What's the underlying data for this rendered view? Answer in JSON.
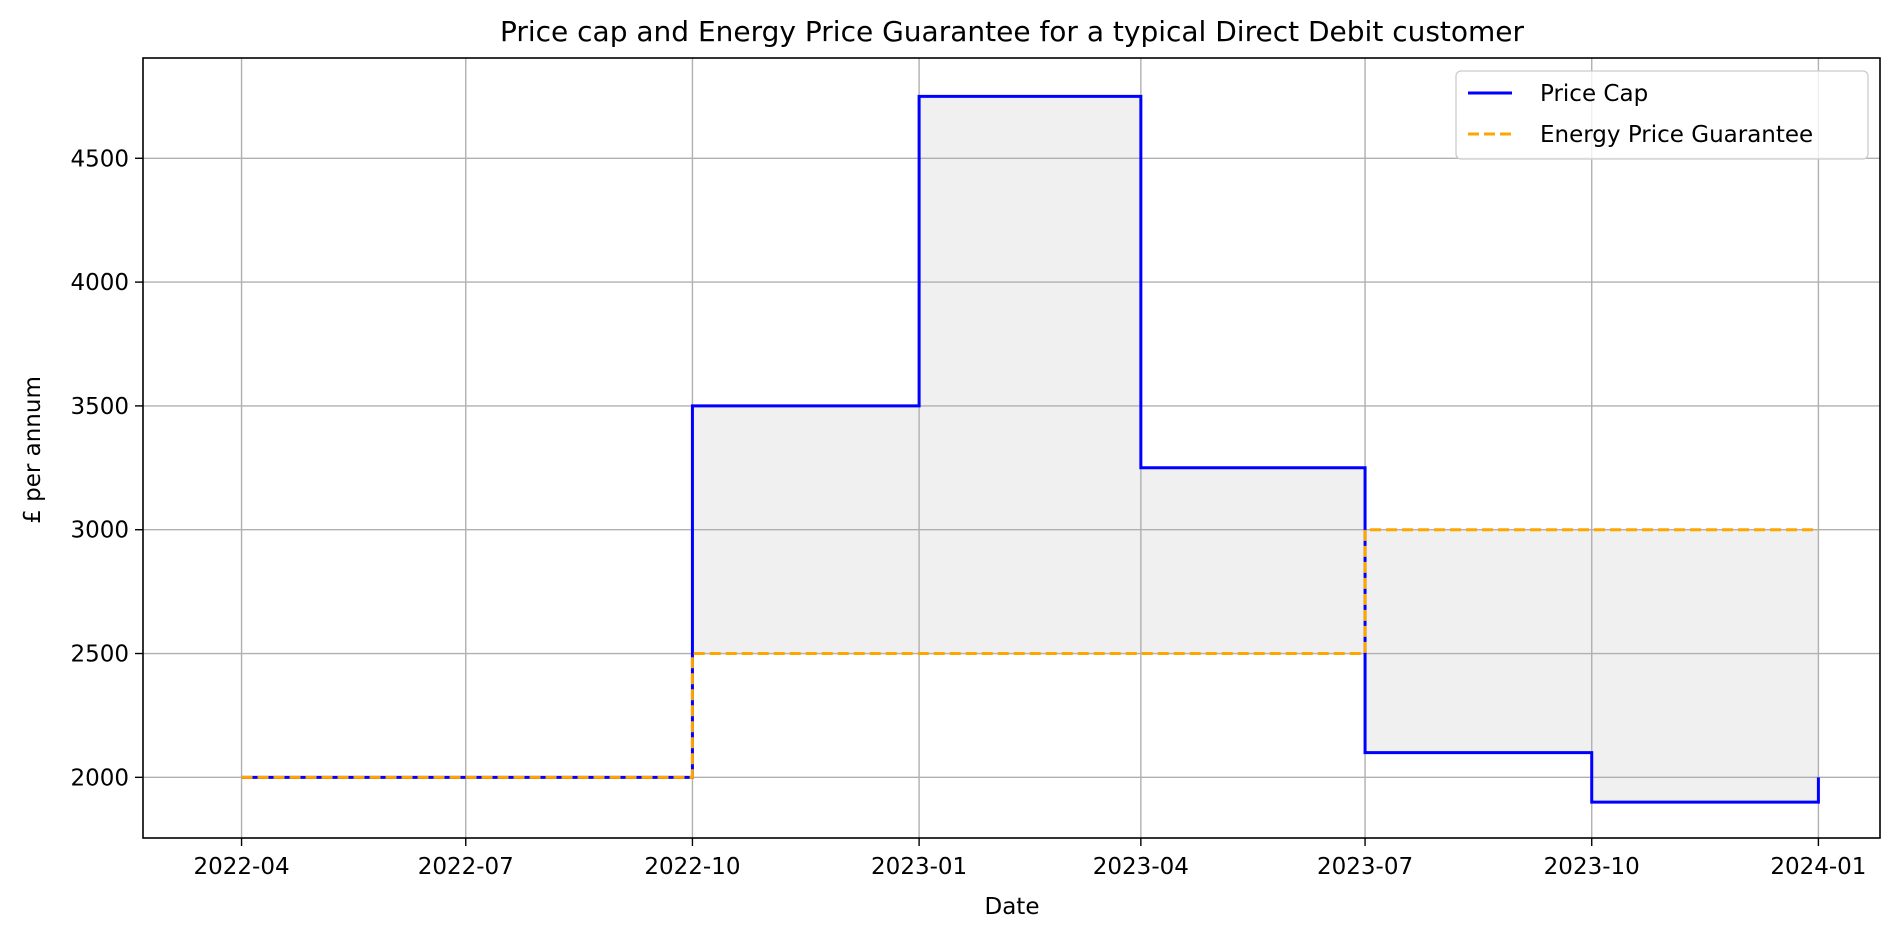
{
  "chart_data": {
    "type": "line",
    "title": "Price cap and Energy Price Guarantee for a typical Direct Debit customer",
    "xlabel": "Date",
    "ylabel": "£ per annum",
    "x_ticks": [
      "2022-04",
      "2022-07",
      "2022-10",
      "2023-01",
      "2023-04",
      "2023-07",
      "2023-10",
      "2024-01"
    ],
    "y_ticks": [
      2000,
      2500,
      3000,
      3500,
      4000,
      4500
    ],
    "xlim": [
      "2022-02-20",
      "2024-01-26"
    ],
    "ylim": [
      1755,
      4905
    ],
    "grid": true,
    "legend_position": "top-right",
    "step": "post",
    "x": [
      "2022-04-01",
      "2022-10-01",
      "2023-01-01",
      "2023-04-01",
      "2023-07-01",
      "2023-10-01",
      "2024-01-01"
    ],
    "series": [
      {
        "name": "Price Cap",
        "values": [
          2000,
          3500,
          4750,
          3250,
          2100,
          1900,
          2000
        ],
        "color": "#0000ff",
        "style": "solid"
      },
      {
        "name": "Energy Price Guarantee",
        "values": [
          2000,
          2500,
          2500,
          2500,
          3000,
          3000,
          3000
        ],
        "color": "#ffa500",
        "style": "dashed"
      }
    ],
    "fill_between": {
      "color": "#f0f0f0"
    }
  }
}
